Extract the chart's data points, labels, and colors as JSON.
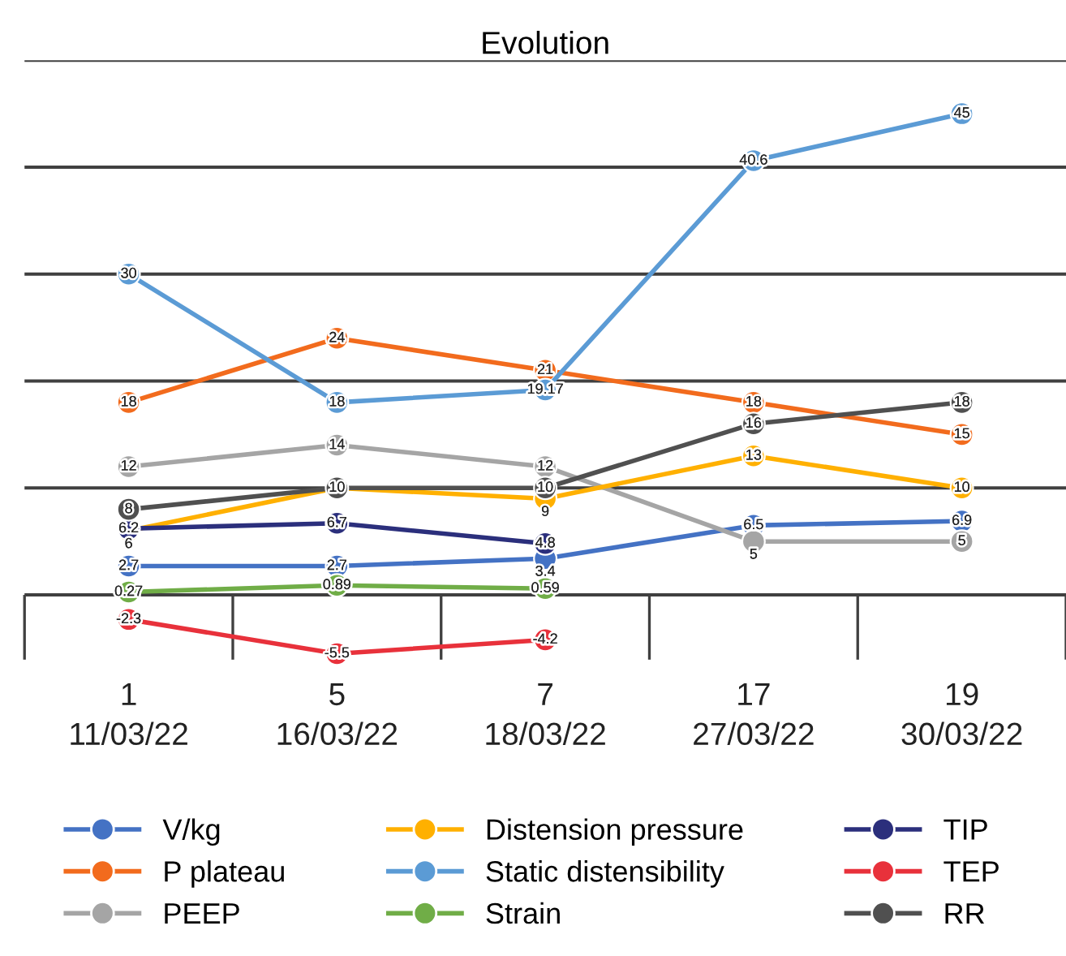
{
  "chart_data": {
    "type": "line",
    "title": "Evolution",
    "categories": [
      "1\n11/03/22",
      "5\n16/03/22",
      "7\n18/03/22",
      "17\n27/03/22",
      "19\n30/03/22"
    ],
    "series": [
      {
        "name": "V/kg",
        "color": "#4472c4",
        "values": [
          2.7,
          2.7,
          3.4,
          6.5,
          6.9
        ]
      },
      {
        "name": "P plateau",
        "color": "#f26b1d",
        "values": [
          18,
          24,
          21,
          18,
          15
        ]
      },
      {
        "name": "PEEP",
        "color": "#a5a5a5",
        "values": [
          12,
          14,
          12,
          5,
          5
        ]
      },
      {
        "name": "Distension pressure",
        "color": "#ffb000",
        "values": [
          6,
          10,
          9,
          13,
          10
        ],
        "value_labels": [
          "6",
          null,
          "9",
          "13",
          "10"
        ]
      },
      {
        "name": "Static distensibility",
        "color": "#5b9bd5",
        "values": [
          30,
          18,
          19.17,
          40.6,
          45
        ]
      },
      {
        "name": "Strain",
        "color": "#70ad47",
        "values": [
          0.27,
          0.89,
          0.59,
          null,
          null
        ]
      },
      {
        "name": "TIP",
        "color": "#2b2f7c",
        "values": [
          6.2,
          6.7,
          4.8,
          null,
          null
        ]
      },
      {
        "name": "TEP",
        "color": "#e8313b",
        "values": [
          -2.3,
          -5.5,
          -4.2,
          null,
          null
        ]
      },
      {
        "name": "RR",
        "color": "#505050",
        "values": [
          8,
          10,
          10,
          16,
          18
        ]
      }
    ],
    "yticks": [
      {
        "value": 0,
        "label": null
      },
      {
        "value": 10,
        "label": null
      },
      {
        "value": 20,
        "label": null
      },
      {
        "value": 30,
        "label": null
      },
      {
        "value": 40,
        "label": null
      },
      {
        "value": 50,
        "label": null
      }
    ],
    "tick_labels": "x",
    "grid": "y",
    "legend": "bottom",
    "marker": "circle",
    "line_style": "solid",
    "data_labels": true
  }
}
